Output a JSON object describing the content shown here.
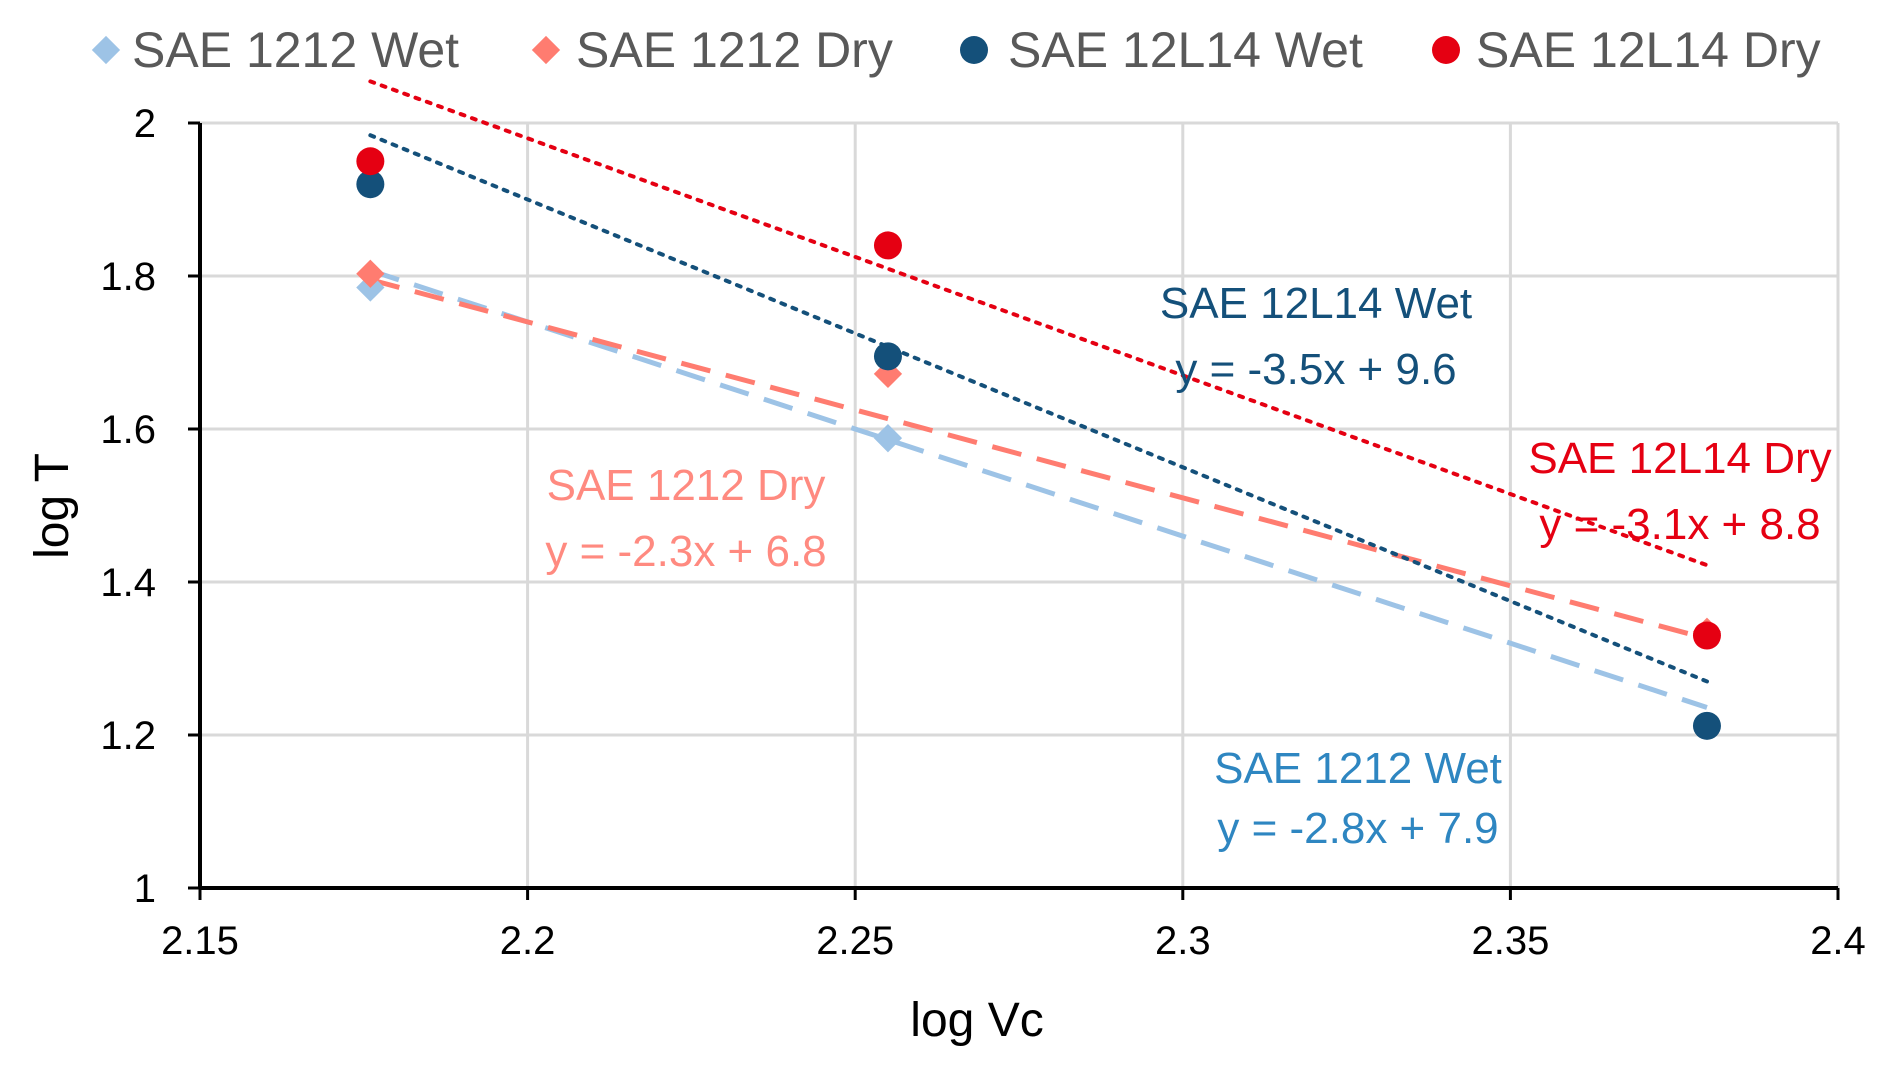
{
  "chart_data": {
    "type": "scatter",
    "title": "",
    "xlabel": "log Vc",
    "ylabel": "log T",
    "xlim": [
      2.15,
      2.4
    ],
    "ylim": [
      1,
      2
    ],
    "x_ticks": [
      2.15,
      2.2,
      2.25,
      2.3,
      2.35,
      2.4
    ],
    "x_tick_labels": [
      "2.15",
      "2.2",
      "2.25",
      "2.3",
      "2.35",
      "2.4"
    ],
    "y_ticks": [
      1,
      1.2,
      1.4,
      1.6,
      1.8,
      2
    ],
    "y_tick_labels": [
      "1",
      "1.2",
      "1.4",
      "1.6",
      "1.8",
      "2"
    ],
    "grid": true,
    "legend_position": "top",
    "series": [
      {
        "id": "s1212wet",
        "name": "SAE 1212 Wet",
        "marker": "diamond",
        "color": "#9DC3E6",
        "trend_color": "#9DC3E6",
        "trend_style": "dashed",
        "points": [
          [
            2.176,
            1.785
          ],
          [
            2.255,
            1.588
          ],
          [
            2.38,
            1.333
          ]
        ],
        "trend": {
          "slope": -2.8,
          "intercept": 7.9,
          "x_range": [
            2.176,
            2.38
          ]
        },
        "annotation": {
          "label": "SAE 1212 Wet",
          "equation": "y = -2.8x + 7.9",
          "color": "#2E86C1"
        }
      },
      {
        "id": "s1212dry",
        "name": "SAE 1212 Dry",
        "marker": "diamond",
        "color": "#FF7C70",
        "trend_color": "#FF7C70",
        "trend_style": "dashed",
        "points": [
          [
            2.176,
            1.803
          ],
          [
            2.255,
            1.672
          ],
          [
            2.38,
            1.335
          ]
        ],
        "trend": {
          "slope": -2.3,
          "intercept": 6.8,
          "x_range": [
            2.176,
            2.38
          ]
        },
        "annotation": {
          "label": "SAE 1212 Dry",
          "equation": "y = -2.3x + 6.8",
          "color": "#FF8A80"
        }
      },
      {
        "id": "s12l14wet",
        "name": "SAE 12L14 Wet",
        "marker": "circle",
        "color": "#14507A",
        "trend_color": "#14507A",
        "trend_style": "dotted",
        "points": [
          [
            2.176,
            1.92
          ],
          [
            2.255,
            1.695
          ],
          [
            2.38,
            1.212
          ]
        ],
        "trend": {
          "slope": -3.5,
          "intercept": 9.6,
          "x_range": [
            2.176,
            2.38
          ]
        },
        "annotation": {
          "label": "SAE 12L14 Wet",
          "equation": "y = -3.5x + 9.6",
          "color": "#14507A"
        }
      },
      {
        "id": "s12l14dry",
        "name": "SAE 12L14 Dry",
        "marker": "circle",
        "color": "#E50012",
        "trend_color": "#E50012",
        "trend_style": "dotted",
        "points": [
          [
            2.176,
            1.95
          ],
          [
            2.255,
            1.84
          ],
          [
            2.38,
            1.33
          ]
        ],
        "trend": {
          "slope": -3.1,
          "intercept": 8.8,
          "x_range": [
            2.176,
            2.38
          ]
        },
        "annotation": {
          "label": "SAE 12L14 Dry",
          "equation": "y = -3.1x + 8.8",
          "color": "#E50012"
        }
      }
    ]
  }
}
